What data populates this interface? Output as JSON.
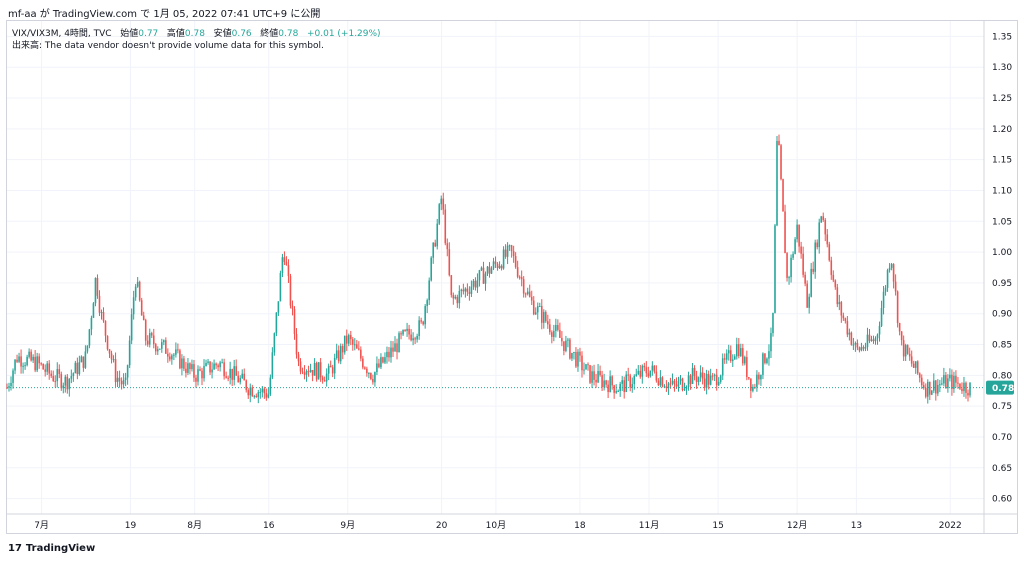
{
  "header": {
    "publish_line": "mf-aa が TradingView.com で 1月 05, 2022 07:41 UTC+9 に公開"
  },
  "legend": {
    "symbol": "VIX/VIX3M, 4時間, TVC",
    "open_label": "始値",
    "open_value": "0.77",
    "high_label": "高値",
    "high_value": "0.78",
    "low_label": "安値",
    "low_value": "0.76",
    "close_label": "終値",
    "close_value": "0.78",
    "change": "+0.01 (+1.29%)",
    "volume_note": "出来高: The data vendor doesn't provide volume data for this symbol."
  },
  "footer": {
    "brand": "TradingView",
    "logo_text": "17"
  },
  "colors": {
    "up": "#26a69a",
    "down": "#ef5350",
    "grid": "#f0f3fa",
    "axis_text": "#131722",
    "last_badge": "#26a69a"
  },
  "chart_data": {
    "type": "candlestick",
    "title": "",
    "xlabel": "",
    "ylabel": "",
    "ylim": [
      0.575,
      1.375
    ],
    "y_ticks": [
      "0.60",
      "0.65",
      "0.70",
      "0.75",
      "0.80",
      "0.85",
      "0.90",
      "0.95",
      "1.00",
      "1.05",
      "1.10",
      "1.15",
      "1.20",
      "1.25",
      "1.30",
      "1.35"
    ],
    "x_ticks": [
      "7月",
      "19",
      "8月",
      "16",
      "9月",
      "20",
      "10月",
      "18",
      "11月",
      "15",
      "12月",
      "13",
      "2022"
    ],
    "x_range": [
      "2021-06-24",
      "2022-01-05"
    ],
    "x_tick_dates": [
      "2021-07-01",
      "2021-07-19",
      "2021-08-01",
      "2021-08-16",
      "2021-09-01",
      "2021-09-20",
      "2021-10-01",
      "2021-10-18",
      "2021-11-01",
      "2021-11-15",
      "2021-12-01",
      "2021-12-13",
      "2022-01-01"
    ],
    "last_price": "0.78",
    "grid": true,
    "path_points": [
      {
        "date": "2021-06-24",
        "value": 0.78
      },
      {
        "date": "2021-06-26",
        "value": 0.83
      },
      {
        "date": "2021-06-30",
        "value": 0.82
      },
      {
        "date": "2021-07-03",
        "value": 0.8
      },
      {
        "date": "2021-07-06",
        "value": 0.79
      },
      {
        "date": "2021-07-10",
        "value": 0.83
      },
      {
        "date": "2021-07-12",
        "value": 0.96
      },
      {
        "date": "2021-07-13",
        "value": 0.9
      },
      {
        "date": "2021-07-16",
        "value": 0.8
      },
      {
        "date": "2021-07-18",
        "value": 0.78
      },
      {
        "date": "2021-07-20",
        "value": 0.96
      },
      {
        "date": "2021-07-22",
        "value": 0.86
      },
      {
        "date": "2021-07-27",
        "value": 0.84
      },
      {
        "date": "2021-08-01",
        "value": 0.8
      },
      {
        "date": "2021-08-06",
        "value": 0.82
      },
      {
        "date": "2021-08-12",
        "value": 0.78
      },
      {
        "date": "2021-08-16",
        "value": 0.77
      },
      {
        "date": "2021-08-19",
        "value": 1.01
      },
      {
        "date": "2021-08-22",
        "value": 0.82
      },
      {
        "date": "2021-08-28",
        "value": 0.8
      },
      {
        "date": "2021-09-01",
        "value": 0.86
      },
      {
        "date": "2021-09-06",
        "value": 0.8
      },
      {
        "date": "2021-09-12",
        "value": 0.86
      },
      {
        "date": "2021-09-16",
        "value": 0.88
      },
      {
        "date": "2021-09-20",
        "value": 1.09
      },
      {
        "date": "2021-09-22",
        "value": 0.92
      },
      {
        "date": "2021-09-28",
        "value": 0.96
      },
      {
        "date": "2021-10-04",
        "value": 1.0
      },
      {
        "date": "2021-10-08",
        "value": 0.92
      },
      {
        "date": "2021-10-12",
        "value": 0.88
      },
      {
        "date": "2021-10-16",
        "value": 0.84
      },
      {
        "date": "2021-10-20",
        "value": 0.8
      },
      {
        "date": "2021-10-26",
        "value": 0.78
      },
      {
        "date": "2021-11-01",
        "value": 0.81
      },
      {
        "date": "2021-11-06",
        "value": 0.78
      },
      {
        "date": "2021-11-10",
        "value": 0.8
      },
      {
        "date": "2021-11-14",
        "value": 0.79
      },
      {
        "date": "2021-11-19",
        "value": 0.85
      },
      {
        "date": "2021-11-22",
        "value": 0.78
      },
      {
        "date": "2021-11-26",
        "value": 0.86
      },
      {
        "date": "2021-11-27",
        "value": 1.2
      },
      {
        "date": "2021-11-29",
        "value": 0.95
      },
      {
        "date": "2021-12-01",
        "value": 1.04
      },
      {
        "date": "2021-12-03",
        "value": 0.92
      },
      {
        "date": "2021-12-06",
        "value": 1.07
      },
      {
        "date": "2021-12-09",
        "value": 0.92
      },
      {
        "date": "2021-12-13",
        "value": 0.84
      },
      {
        "date": "2021-12-17",
        "value": 0.86
      },
      {
        "date": "2021-12-20",
        "value": 1.0
      },
      {
        "date": "2021-12-22",
        "value": 0.85
      },
      {
        "date": "2021-12-27",
        "value": 0.78
      },
      {
        "date": "2022-01-01",
        "value": 0.79
      },
      {
        "date": "2022-01-05",
        "value": 0.78
      }
    ]
  }
}
